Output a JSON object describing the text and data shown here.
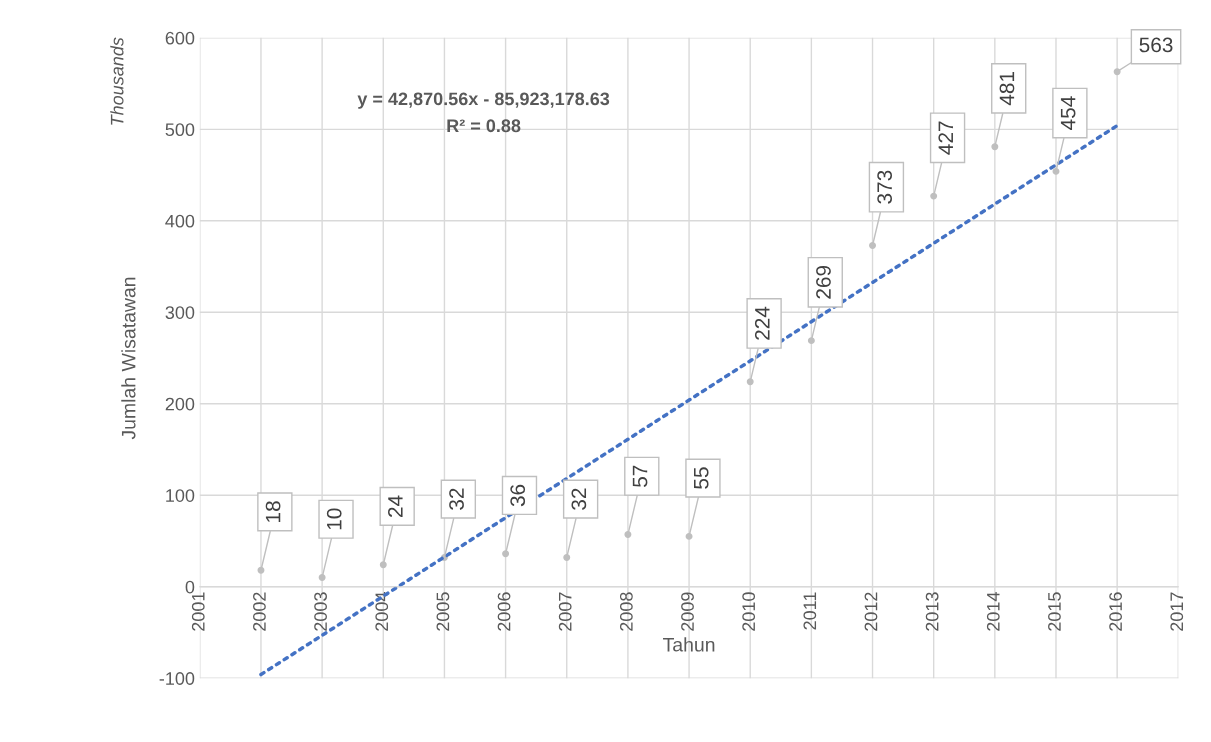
{
  "chart_data": {
    "type": "scatter",
    "xlabel": "Tahun",
    "ylabel": "Jumlah Wisatawan",
    "annotations": [
      "Thousands",
      "y = 42,870.56x - 85,923,178.63",
      "R² = 0.88"
    ],
    "series": [
      {
        "type": "scatter",
        "marker": "circle",
        "color": "#bfbfbf",
        "data_labels": true,
        "x": [
          2002,
          2003,
          2004,
          2005,
          2006,
          2007,
          2008,
          2009,
          2010,
          2011,
          2012,
          2013,
          2014,
          2015,
          2016
        ],
        "values": [
          18,
          10,
          24,
          32,
          36,
          32,
          57,
          55,
          224,
          269,
          373,
          427,
          481,
          454,
          563
        ]
      },
      {
        "type": "line",
        "color": "#4472c4",
        "line_style": "dotted",
        "x": [
          2002,
          2016
        ],
        "values": [
          -96,
          504
        ]
      }
    ],
    "xlim": [
      2001,
      2017
    ],
    "xticks": [
      2001,
      2002,
      2003,
      2004,
      2005,
      2006,
      2007,
      2008,
      2009,
      2010,
      2011,
      2012,
      2013,
      2014,
      2015,
      2016,
      2017
    ],
    "ylim": [
      -100,
      600
    ],
    "yticks": [
      -100,
      0,
      100,
      200,
      300,
      400,
      500,
      600
    ],
    "grid": true,
    "legend": false
  }
}
